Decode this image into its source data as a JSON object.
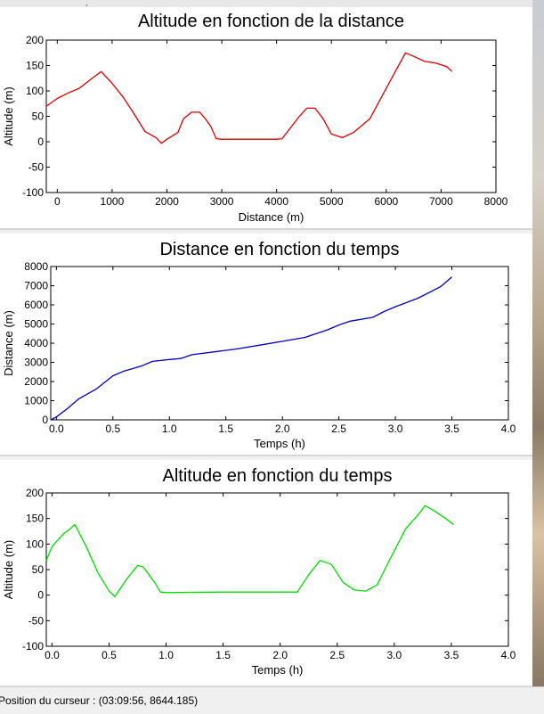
{
  "window": {
    "top_mark": ","
  },
  "status_bar": {
    "text": "Position du curseur : (03:09:56, 8644.185)"
  },
  "chart_data": [
    {
      "type": "line",
      "title": "Altitude en fonction de la distance",
      "xlabel": "Distance (m)",
      "ylabel": "Altitude (m)",
      "xlim": [
        -200,
        8000
      ],
      "ylim": [
        -100,
        200
      ],
      "xticks": [
        0,
        1000,
        2000,
        3000,
        4000,
        5000,
        6000,
        7000,
        8000
      ],
      "yticks": [
        -100,
        -50,
        0,
        50,
        100,
        150,
        200
      ],
      "tick_decimals": 0,
      "grid": false,
      "color": "#dd0000",
      "x": [
        -200,
        0,
        200,
        400,
        600,
        700,
        800,
        1000,
        1200,
        1400,
        1600,
        1800,
        1900,
        2000,
        2200,
        2300,
        2450,
        2600,
        2700,
        2800,
        2900,
        3000,
        3500,
        4000,
        4100,
        4200,
        4400,
        4550,
        4700,
        4850,
        5000,
        5200,
        5400,
        5700,
        6000,
        6200,
        6350,
        6500,
        6700,
        6900,
        7100,
        7200
      ],
      "y": [
        70,
        85,
        96,
        105,
        122,
        130,
        138,
        115,
        88,
        55,
        20,
        8,
        -3,
        5,
        18,
        45,
        58,
        58,
        45,
        30,
        6,
        5,
        5,
        5,
        6,
        20,
        48,
        66,
        66,
        45,
        15,
        8,
        18,
        45,
        105,
        145,
        175,
        168,
        158,
        155,
        148,
        138
      ]
    },
    {
      "type": "line",
      "title": "Distance en fonction du temps",
      "xlabel": "Temps (h)",
      "ylabel": "Distance (m)",
      "xlim": [
        -0.05,
        4.0
      ],
      "ylim": [
        0,
        8000
      ],
      "xticks": [
        0,
        0.5,
        1.0,
        1.5,
        2.0,
        2.5,
        3.0,
        3.5,
        4.0
      ],
      "yticks": [
        0,
        1000,
        2000,
        3000,
        4000,
        5000,
        6000,
        7000,
        8000
      ],
      "tick_decimals": 1,
      "grid": false,
      "color": "#0000c0",
      "x": [
        -0.05,
        0.0,
        0.1,
        0.2,
        0.35,
        0.5,
        0.6,
        0.75,
        0.85,
        1.0,
        1.1,
        1.2,
        1.4,
        1.6,
        1.8,
        2.0,
        2.2,
        2.4,
        2.5,
        2.6,
        2.8,
        2.9,
        3.0,
        3.2,
        3.4,
        3.5
      ],
      "y": [
        0,
        150,
        600,
        1100,
        1600,
        2300,
        2550,
        2800,
        3050,
        3150,
        3200,
        3400,
        3550,
        3700,
        3900,
        4100,
        4300,
        4700,
        4950,
        5150,
        5350,
        5650,
        5900,
        6350,
        6950,
        7450
      ]
    },
    {
      "type": "line",
      "title": "Altitude en fonction du temps",
      "xlabel": "Temps (h)",
      "ylabel": "Altitude (m)",
      "xlim": [
        -0.05,
        4.0
      ],
      "ylim": [
        -100,
        200
      ],
      "xticks": [
        0,
        0.5,
        1.0,
        1.5,
        2.0,
        2.5,
        3.0,
        3.5,
        4.0
      ],
      "yticks": [
        -100,
        -50,
        0,
        50,
        100,
        150,
        200
      ],
      "tick_decimals": 1,
      "ytick_decimals": 0,
      "grid": false,
      "color": "#00dd00",
      "x": [
        -0.05,
        0.0,
        0.1,
        0.15,
        0.2,
        0.3,
        0.4,
        0.5,
        0.55,
        0.65,
        0.75,
        0.8,
        0.9,
        0.95,
        1.0,
        1.5,
        2.0,
        2.15,
        2.25,
        2.35,
        2.45,
        2.55,
        2.65,
        2.75,
        2.85,
        2.95,
        3.1,
        3.2,
        3.27,
        3.35,
        3.45,
        3.52
      ],
      "y": [
        68,
        95,
        120,
        128,
        138,
        95,
        45,
        8,
        -3,
        30,
        58,
        55,
        25,
        6,
        5,
        6,
        6,
        6,
        40,
        68,
        60,
        25,
        10,
        8,
        20,
        65,
        130,
        155,
        175,
        165,
        150,
        138
      ]
    }
  ]
}
